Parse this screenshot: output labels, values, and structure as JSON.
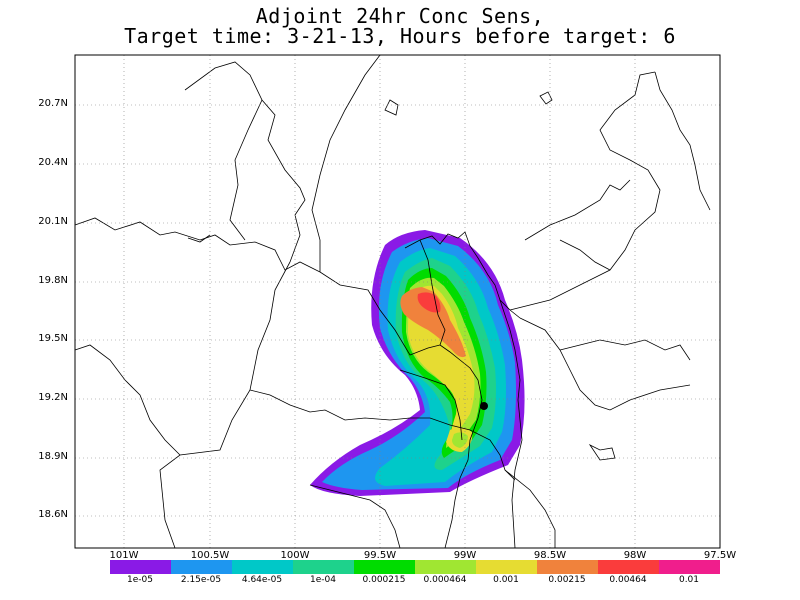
{
  "title_line1": "Adjoint 24hr Conc Sens,",
  "title_line2": "Target time: 3-21-13, Hours before target: 6",
  "lat_labels": [
    "20.7N",
    "20.4N",
    "20.1N",
    "19.8N",
    "19.5N",
    "19.2N",
    "18.9N",
    "18.6N"
  ],
  "lon_labels": [
    "101W",
    "100.5W",
    "100W",
    "99.5W",
    "99W",
    "98.5W",
    "98W",
    "97.5W"
  ],
  "colorbar": {
    "colors": [
      "#8a1ae6",
      "#1e96f0",
      "#00c8c8",
      "#1ed28c",
      "#00dc00",
      "#a0e632",
      "#e6dc32",
      "#f0823c",
      "#fa3c3c",
      "#f01e8c"
    ],
    "levels": [
      "1e-05",
      "2.15e-05",
      "4.64e-05",
      "1e-04",
      "0.000215",
      "0.000464",
      "0.001",
      "0.00215",
      "0.00464",
      "0.01"
    ]
  },
  "marker": "target-location"
}
